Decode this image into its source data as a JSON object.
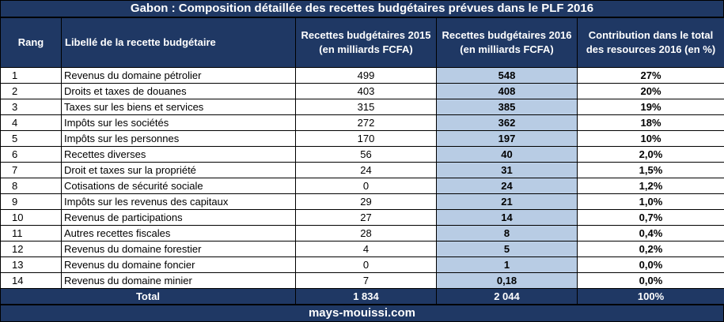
{
  "title": "Gabon : Composition détaillée des recettes budgétaires prévues dans le PLF 2016",
  "headers": {
    "rang": "Rang",
    "libelle": "Libellé de la recette budgétaire",
    "r2015": "Recettes budgétaires 2015 (en milliards FCFA)",
    "r2016": "Recettes budgétaires 2016 (en milliards FCFA)",
    "contribution": "Contribution dans le total des resources 2016 (en %)"
  },
  "rows": [
    {
      "rang": "1",
      "libelle": "Revenus du domaine pétrolier",
      "r2015": "499",
      "r2016": "548",
      "contribution": "27%"
    },
    {
      "rang": "2",
      "libelle": "Droits et taxes de douanes",
      "r2015": "403",
      "r2016": "408",
      "contribution": "20%"
    },
    {
      "rang": "3",
      "libelle": "Taxes sur les biens et services",
      "r2015": "315",
      "r2016": "385",
      "contribution": "19%"
    },
    {
      "rang": "4",
      "libelle": "Impôts sur les sociétés",
      "r2015": "272",
      "r2016": "362",
      "contribution": "18%"
    },
    {
      "rang": "5",
      "libelle": "Impôts sur les personnes",
      "r2015": "170",
      "r2016": "197",
      "contribution": "10%"
    },
    {
      "rang": "6",
      "libelle": "Recettes diverses",
      "r2015": "56",
      "r2016": "40",
      "contribution": "2,0%"
    },
    {
      "rang": "7",
      "libelle": "Droit et taxes sur la propriété",
      "r2015": "24",
      "r2016": "31",
      "contribution": "1,5%"
    },
    {
      "rang": "8",
      "libelle": "Cotisations  de sécurité sociale",
      "r2015": "0",
      "r2016": "24",
      "contribution": "1,2%"
    },
    {
      "rang": "9",
      "libelle": "Impôts sur les revenus des capitaux",
      "r2015": "29",
      "r2016": "21",
      "contribution": "1,0%"
    },
    {
      "rang": "10",
      "libelle": "Revenus de participations",
      "r2015": "27",
      "r2016": "14",
      "contribution": "0,7%"
    },
    {
      "rang": "11",
      "libelle": "Autres recettes fiscales",
      "r2015": "28",
      "r2016": "8",
      "contribution": "0,4%"
    },
    {
      "rang": "12",
      "libelle": "Revenus du domaine forestier",
      "r2015": "4",
      "r2016": "5",
      "contribution": "0,2%"
    },
    {
      "rang": "13",
      "libelle": "Revenus du domaine foncier",
      "r2015": "0",
      "r2016": "1",
      "contribution": "0,0%"
    },
    {
      "rang": "14",
      "libelle": "Revenus du domaine minier",
      "r2015": "7",
      "r2016": "0,18",
      "contribution": "0,0%"
    }
  ],
  "total": {
    "label": "Total",
    "r2015": "1 834",
    "r2016": "2 044",
    "contribution": "100%"
  },
  "footer": "mays-mouissi.com",
  "colors": {
    "header_bg": "#1f3864",
    "highlight_2016": "#b8cce4"
  }
}
